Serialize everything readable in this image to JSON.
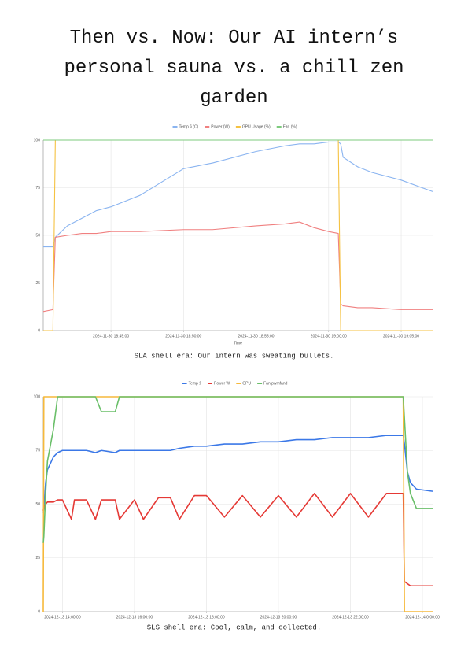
{
  "title": "Then vs. Now: Our AI intern’s personal sauna vs. a chill zen garden",
  "chart_data": [
    {
      "type": "line",
      "x_label": "Time",
      "caption": "SLA shell era: Our intern was sweating bullets.",
      "x": [
        "2024-11-30 18:40:20",
        "2024-11-30 18:41:00",
        "2024-11-30 18:41:10",
        "2024-11-30 18:42:00",
        "2024-11-30 18:43:00",
        "2024-11-30 18:44:00",
        "2024-11-30 18:45:00",
        "2024-11-30 18:47:00",
        "2024-11-30 18:50:00",
        "2024-11-30 18:52:00",
        "2024-11-30 18:55:00",
        "2024-11-30 18:57:00",
        "2024-11-30 18:58:00",
        "2024-11-30 18:59:00",
        "2024-11-30 19:00:00",
        "2024-11-30 19:00:40",
        "2024-11-30 19:00:50",
        "2024-11-30 19:01:00",
        "2024-11-30 19:02:00",
        "2024-11-30 19:03:00",
        "2024-11-30 19:05:00",
        "2024-11-30 19:07:10"
      ],
      "xlim": [
        "2024-11-30 18:40:20",
        "2024-11-30 19:07:10"
      ],
      "xticks": [
        "2024-11-30 18:45:00",
        "2024-11-30 18:50:00",
        "2024-11-30 18:55:00",
        "2024-11-30 19:00:00",
        "2024-11-30 19:05:00"
      ],
      "ylim": [
        0,
        100
      ],
      "yticks": [
        0,
        25,
        50,
        75,
        100
      ],
      "grid": true,
      "series": [
        {
          "name": "Temp § (C)",
          "color": "#8ab4f0",
          "values": [
            44,
            44,
            49,
            55,
            59,
            63,
            65,
            71,
            85,
            88,
            94,
            97,
            98,
            98,
            99,
            99,
            98,
            91,
            86,
            83,
            79,
            73
          ]
        },
        {
          "name": "Power (W)",
          "color": "#f08080",
          "values": [
            10,
            11,
            49,
            50,
            51,
            51,
            52,
            52,
            53,
            53,
            55,
            56,
            57,
            54,
            52,
            51,
            14,
            13,
            12,
            12,
            11,
            11
          ]
        },
        {
          "name": "GPU Usage (%)",
          "color": "#f5c242",
          "values": [
            0,
            0,
            100,
            100,
            100,
            100,
            100,
            100,
            100,
            100,
            100,
            100,
            100,
            100,
            100,
            100,
            0,
            0,
            0,
            0,
            0,
            0
          ]
        },
        {
          "name": "Fan (%)",
          "color": "#7ecb7e",
          "values": [
            100,
            100,
            100,
            100,
            100,
            100,
            100,
            100,
            100,
            100,
            100,
            100,
            100,
            100,
            100,
            100,
            100,
            100,
            100,
            100,
            100,
            100
          ]
        }
      ]
    },
    {
      "type": "line",
      "caption": "SLS shell era: Cool, calm, and collected.",
      "x": [
        "2024-12-13 13:28:00",
        "2024-12-13 13:29:00",
        "2024-12-13 13:32:00",
        "2024-12-13 13:35:00",
        "2024-12-13 13:45:00",
        "2024-12-13 13:52:00",
        "2024-12-13 14:00:00",
        "2024-12-13 14:15:00",
        "2024-12-13 14:20:00",
        "2024-12-13 14:40:00",
        "2024-12-13 14:55:00",
        "2024-12-13 15:05:00",
        "2024-12-13 15:28:00",
        "2024-12-13 15:35:00",
        "2024-12-13 16:00:00",
        "2024-12-13 16:15:00",
        "2024-12-13 16:40:00",
        "2024-12-13 17:00:00",
        "2024-12-13 17:15:00",
        "2024-12-13 17:40:00",
        "2024-12-13 18:00:00",
        "2024-12-13 18:30:00",
        "2024-12-13 19:00:00",
        "2024-12-13 19:30:00",
        "2024-12-13 20:00:00",
        "2024-12-13 20:30:00",
        "2024-12-13 21:00:00",
        "2024-12-13 21:30:00",
        "2024-12-13 22:00:00",
        "2024-12-13 22:30:00",
        "2024-12-13 23:00:00",
        "2024-12-13 23:28:00",
        "2024-12-13 23:30:00",
        "2024-12-13 23:35:00",
        "2024-12-13 23:40:00",
        "2024-12-13 23:50:00",
        "2024-12-14 00:17:00"
      ],
      "xlim": [
        "2024-12-13 13:28:00",
        "2024-12-14 00:17:00"
      ],
      "xticks": [
        "2024-12-13 14:00:00",
        "2024-12-13 16:00:00",
        "2024-12-13 18:00:00",
        "2024-12-13 20:00:00",
        "2024-12-13 22:00:00",
        {
          "value": "2024-12-14 00:00:00",
          "label": "2024-12-14 0:00:00"
        }
      ],
      "ylim": [
        0,
        100
      ],
      "yticks": [
        0,
        25,
        50,
        75,
        100
      ],
      "grid": true,
      "series": [
        {
          "name": "Temp §",
          "color": "#3b78e7",
          "values": [
            46,
            48,
            60,
            66,
            72,
            74,
            75,
            75,
            75,
            75,
            74,
            75,
            74,
            75,
            75,
            75,
            75,
            75,
            76,
            77,
            77,
            78,
            78,
            79,
            79,
            80,
            80,
            81,
            81,
            81,
            82,
            82,
            78,
            65,
            60,
            57,
            56
          ]
        },
        {
          "name": "Power W",
          "color": "#e53935",
          "values": [
            47,
            49,
            50,
            51,
            51,
            52,
            52,
            43,
            52,
            52,
            43,
            52,
            52,
            43,
            52,
            43,
            53,
            53,
            43,
            54,
            54,
            44,
            54,
            44,
            54,
            44,
            55,
            44,
            55,
            44,
            55,
            55,
            14,
            13,
            12,
            12,
            12
          ]
        },
        {
          "name": "GPU",
          "color": "#f6b93b",
          "values": [
            0,
            100,
            100,
            100,
            100,
            100,
            100,
            100,
            100,
            100,
            100,
            100,
            100,
            100,
            100,
            100,
            100,
            100,
            100,
            100,
            100,
            100,
            100,
            100,
            100,
            100,
            100,
            100,
            100,
            100,
            100,
            100,
            0,
            0,
            0,
            0,
            0
          ]
        },
        {
          "name": "Fan pwmfand",
          "color": "#6abf69",
          "values": [
            32,
            35,
            55,
            70,
            85,
            100,
            100,
            100,
            100,
            100,
            100,
            93,
            93,
            100,
            100,
            100,
            100,
            100,
            100,
            100,
            100,
            100,
            100,
            100,
            100,
            100,
            100,
            100,
            100,
            100,
            100,
            100,
            90,
            65,
            55,
            48,
            48
          ]
        }
      ]
    }
  ]
}
